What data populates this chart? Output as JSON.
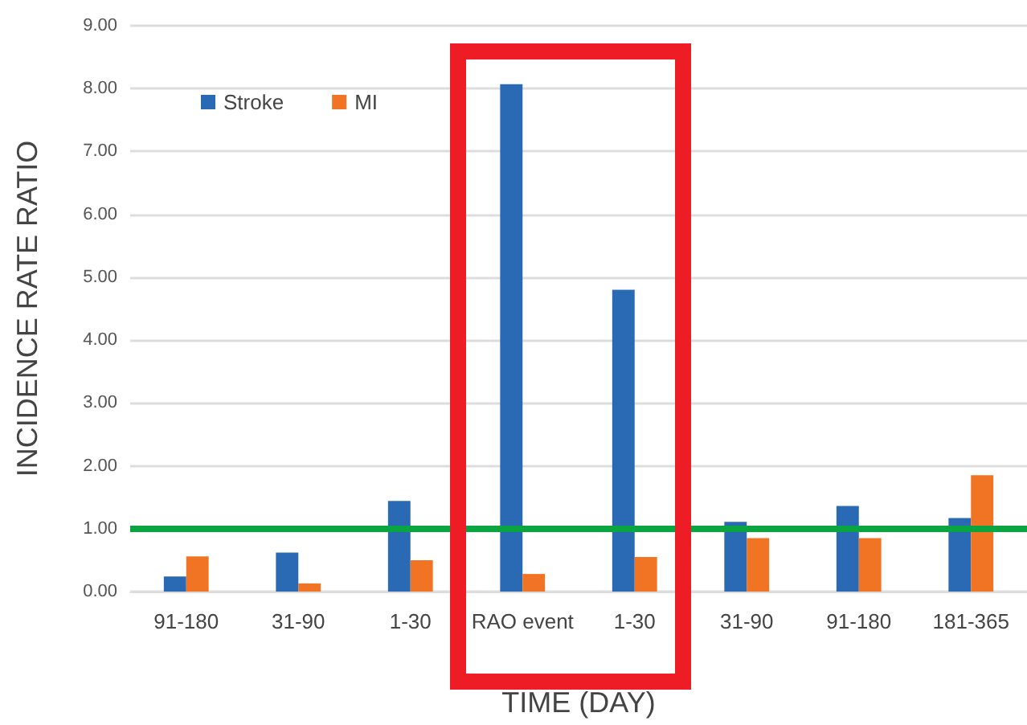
{
  "chart_data": {
    "type": "bar",
    "xlabel": "TIME (DAY)",
    "ylabel": "INCIDENCE RATE RATIO",
    "categories": [
      "91-180",
      "31-90",
      "1-30",
      "RAO event",
      "1-30",
      "31-90",
      "91-180",
      "181-365"
    ],
    "series": [
      {
        "name": "Stroke",
        "color": "#2a6ab4",
        "values": [
          0.24,
          0.62,
          1.44,
          8.07,
          4.8,
          1.11,
          1.36,
          1.17
        ]
      },
      {
        "name": "MI",
        "color": "#f07424",
        "values": [
          0.56,
          0.13,
          0.5,
          0.28,
          0.55,
          0.85,
          0.85,
          1.85
        ]
      }
    ],
    "ylim": [
      0,
      9
    ],
    "yticks": [
      {
        "value": 0,
        "label": "0.00"
      },
      {
        "value": 1,
        "label": "1.00"
      },
      {
        "value": 2,
        "label": "2.00"
      },
      {
        "value": 3,
        "label": "3.00"
      },
      {
        "value": 4,
        "label": "4.00"
      },
      {
        "value": 5,
        "label": "5.00"
      },
      {
        "value": 6,
        "label": "6.00"
      },
      {
        "value": 7,
        "label": "7.00"
      },
      {
        "value": 8,
        "label": "8.00"
      },
      {
        "value": 9,
        "label": "9.00"
      }
    ],
    "grid": "y",
    "legend": "top left",
    "ref_lines": [
      {
        "axis": "y",
        "value": 1,
        "color": "#0aa540"
      }
    ]
  }
}
